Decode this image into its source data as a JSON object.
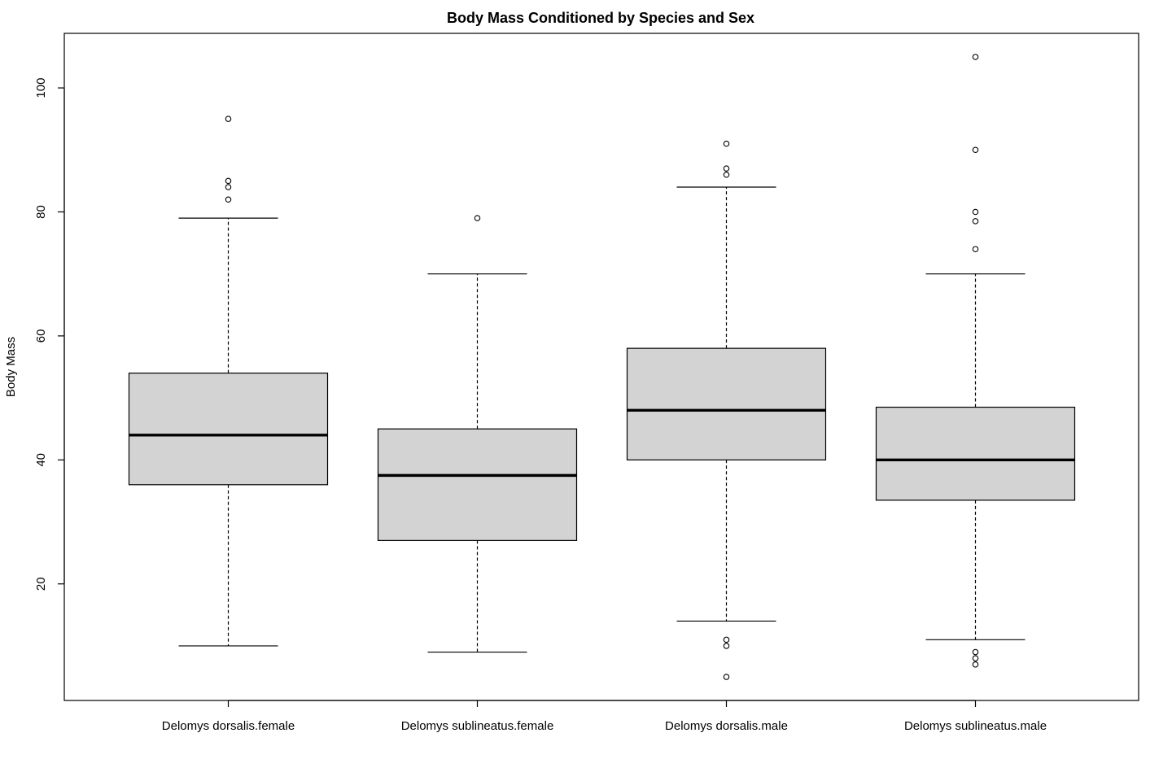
{
  "chart_data": {
    "type": "boxplot",
    "title": "Body Mass Conditioned by Species and Sex",
    "xlabel": "",
    "ylabel": "Body Mass",
    "ylim": [
      1.2,
      108.8
    ],
    "yticks": [
      20,
      40,
      60,
      80,
      100
    ],
    "grid": false,
    "categories": [
      "Delomys dorsalis.female",
      "Delomys sublineatus.female",
      "Delomys dorsalis.male",
      "Delomys sublineatus.male"
    ],
    "boxes": [
      {
        "whisker_low": 10,
        "q1": 36,
        "median": 44,
        "q3": 54,
        "whisker_high": 79,
        "outliers": [
          82,
          84,
          85,
          95
        ]
      },
      {
        "whisker_low": 9,
        "q1": 27,
        "median": 37.5,
        "q3": 45,
        "whisker_high": 70,
        "outliers": [
          79
        ]
      },
      {
        "whisker_low": 14,
        "q1": 40,
        "median": 48,
        "q3": 58,
        "whisker_high": 84,
        "outliers": [
          5,
          10,
          11,
          86,
          87,
          91
        ]
      },
      {
        "whisker_low": 11,
        "q1": 33.5,
        "median": 40,
        "q3": 48.5,
        "whisker_high": 70,
        "outliers": [
          7,
          8,
          9,
          74,
          78.5,
          80,
          90,
          105
        ]
      }
    ]
  }
}
